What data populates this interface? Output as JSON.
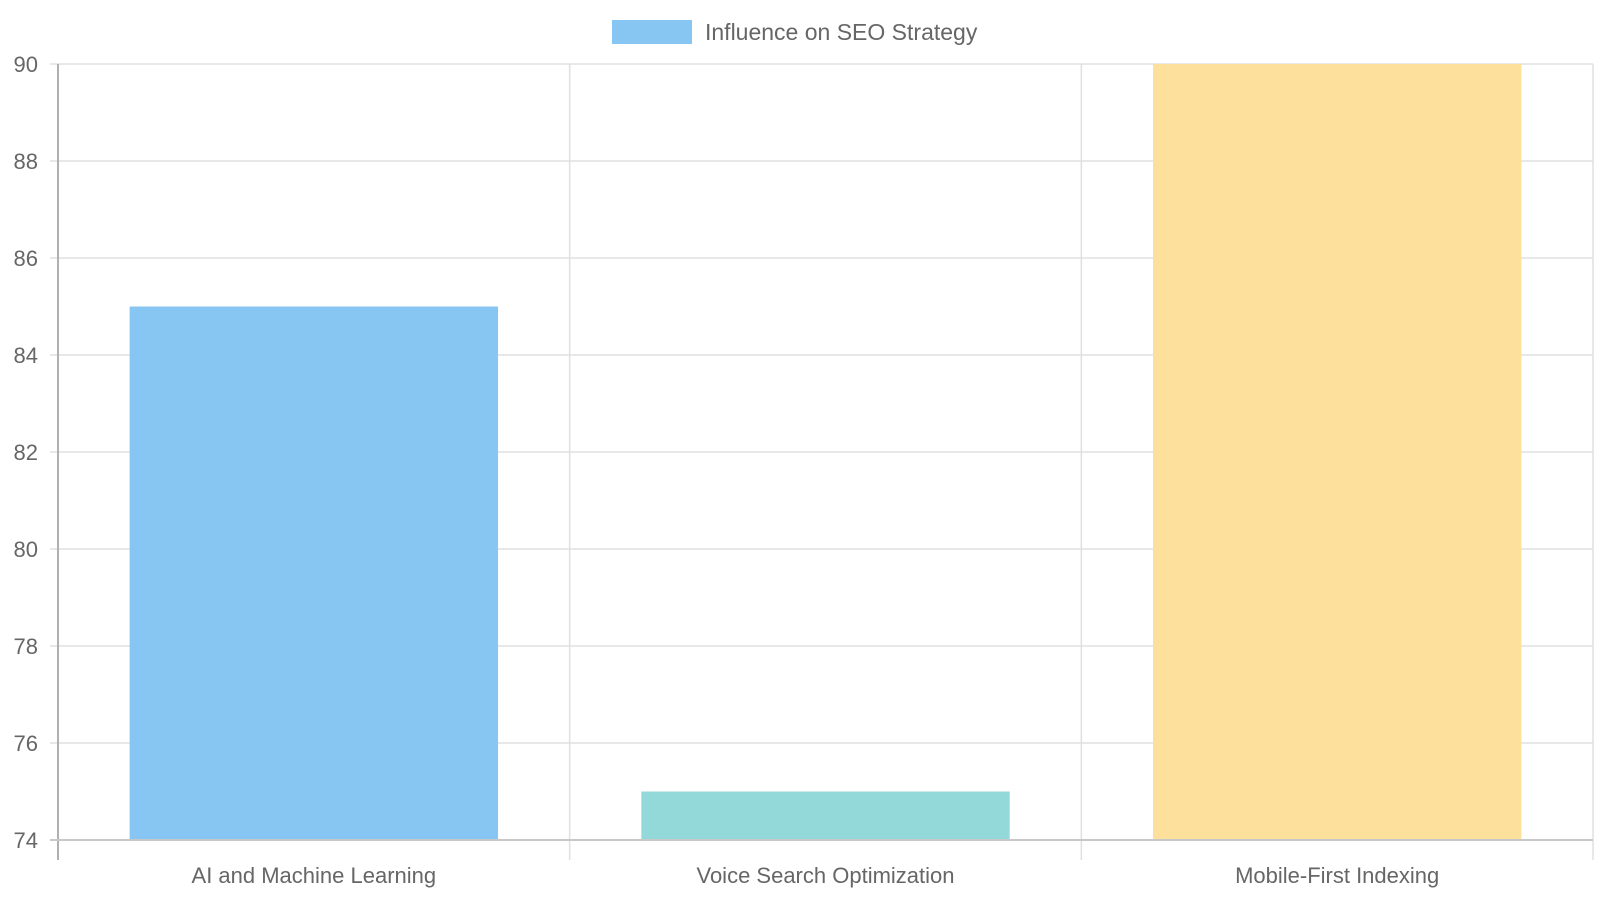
{
  "chart_data": {
    "type": "bar",
    "title": "",
    "xlabel": "",
    "ylabel": "",
    "categories": [
      "AI and Machine Learning",
      "Voice Search Optimization",
      "Mobile-First Indexing"
    ],
    "series": [
      {
        "name": "Influence on SEO Strategy",
        "values": [
          85,
          75,
          90
        ]
      }
    ],
    "bar_colors": [
      "#87c6f2",
      "#94d9d9",
      "#fce09b"
    ],
    "legend_color": "#87c6f2",
    "ylim": [
      74,
      90
    ],
    "yticks": [
      74,
      76,
      78,
      80,
      82,
      84,
      86,
      88,
      90
    ],
    "grid": true,
    "legend_position": "top-center"
  }
}
